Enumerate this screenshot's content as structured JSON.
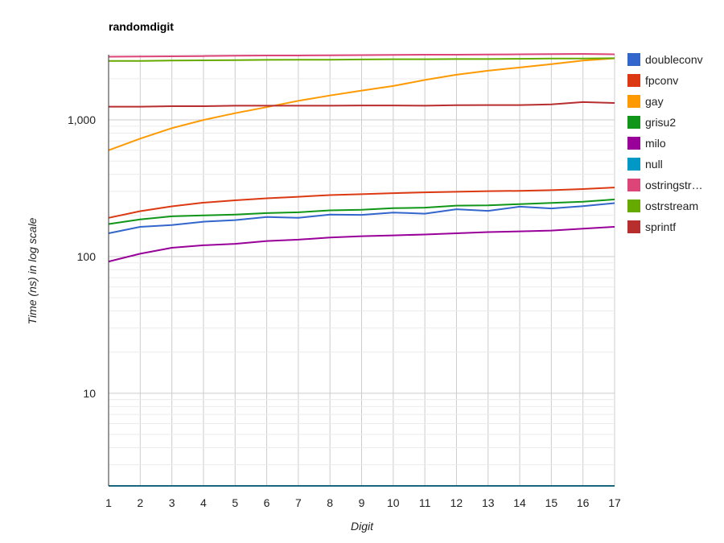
{
  "chart_data": {
    "type": "line",
    "title": "randomdigit",
    "xlabel": "Digit",
    "ylabel": "Time (ns) in log scale",
    "y_scale": "log",
    "grid": true,
    "legend_position": "right",
    "x": [
      1,
      2,
      3,
      4,
      5,
      6,
      7,
      8,
      9,
      10,
      11,
      12,
      13,
      14,
      15,
      16,
      17
    ],
    "x_ticks": [
      "1",
      "2",
      "3",
      "4",
      "5",
      "6",
      "7",
      "8",
      "9",
      "10",
      "11",
      "12",
      "13",
      "14",
      "15",
      "16",
      "17"
    ],
    "y_ticks": [
      {
        "value": 10,
        "label": "10"
      },
      {
        "value": 100,
        "label": "100"
      },
      {
        "value": 1000,
        "label": "1,000"
      }
    ],
    "ylim": [
      2.1,
      3000
    ],
    "series": [
      {
        "name": "doubleconv",
        "color": "#3366cc",
        "values": [
          148,
          165,
          170,
          180,
          185,
          195,
          192,
          203,
          202,
          210,
          206,
          222,
          216,
          232,
          225,
          234,
          246
        ]
      },
      {
        "name": "fpconv",
        "color": "#dc3912",
        "values": [
          192,
          215,
          233,
          248,
          258,
          267,
          274,
          282,
          286,
          291,
          295,
          298,
          301,
          303,
          306,
          312,
          320
        ]
      },
      {
        "name": "gay",
        "color": "#ff9900",
        "values": [
          600,
          730,
          870,
          1000,
          1120,
          1240,
          1380,
          1510,
          1640,
          1770,
          1960,
          2140,
          2290,
          2420,
          2560,
          2720,
          2820
        ]
      },
      {
        "name": "grisu2",
        "color": "#109618",
        "values": [
          173,
          187,
          197,
          200,
          203,
          208,
          211,
          218,
          220,
          226,
          228,
          236,
          237,
          242,
          247,
          252,
          262
        ]
      },
      {
        "name": "milo",
        "color": "#990099",
        "values": [
          92,
          105,
          116,
          121,
          124,
          130,
          133,
          138,
          141,
          143,
          145,
          148,
          151,
          153,
          155,
          160,
          165
        ]
      },
      {
        "name": "null",
        "color": "#0099c6",
        "values": [
          2.1,
          2.1,
          2.1,
          2.1,
          2.1,
          2.1,
          2.1,
          2.1,
          2.1,
          2.1,
          2.1,
          2.1,
          2.1,
          2.1,
          2.1,
          2.1,
          2.1
        ]
      },
      {
        "name": "ostringstr…",
        "color": "#dd4477",
        "values": [
          2900,
          2910,
          2920,
          2930,
          2950,
          2960,
          2960,
          2970,
          2980,
          2990,
          3000,
          3000,
          3010,
          3020,
          3030,
          3040,
          3020
        ]
      },
      {
        "name": "ostrstream",
        "color": "#66aa00",
        "values": [
          2700,
          2700,
          2720,
          2730,
          2740,
          2750,
          2760,
          2760,
          2770,
          2780,
          2780,
          2790,
          2790,
          2800,
          2810,
          2810,
          2830
        ]
      },
      {
        "name": "sprintf",
        "color": "#b82e2e",
        "values": [
          1250,
          1250,
          1260,
          1260,
          1270,
          1270,
          1270,
          1270,
          1275,
          1275,
          1270,
          1280,
          1285,
          1285,
          1300,
          1350,
          1330
        ]
      }
    ]
  }
}
